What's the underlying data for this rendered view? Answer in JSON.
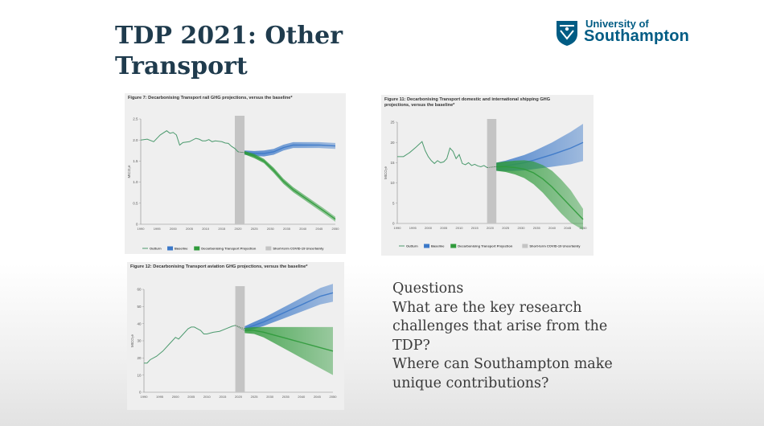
{
  "slide": {
    "title": "TDP 2021: Other Transport",
    "logo": {
      "top": "University of",
      "main": "Southampton"
    },
    "questions": {
      "heading": "Questions",
      "lines": [
        "What are the key research challenges that arise from the TDP?",
        "Where can Southampton make unique contributions?"
      ]
    }
  },
  "colors": {
    "outturn": "#4c9a6e",
    "baseline": "#3b78c8",
    "decarbonising": "#2f9a3b",
    "uncertainty": "#c4c4c4",
    "title": "#1f3b4d",
    "logo": "#005c84"
  },
  "chart_data": [
    {
      "id": "rail",
      "type": "line",
      "title": "Figure 7: Decarbonising Transport rail GHG projections, versus the baseline*",
      "ylabel": "MtCO₂e",
      "ylim": [
        0,
        2.5
      ],
      "yticks": [
        0,
        0.5,
        1.0,
        1.5,
        2.0,
        2.5
      ],
      "ytick_labels": [
        "0",
        "0.5",
        "1.0",
        "1.5",
        "2.0",
        "2.5"
      ],
      "xlim": [
        1990,
        2050
      ],
      "xticks": [
        1990,
        1995,
        2000,
        2005,
        2010,
        2015,
        2020,
        2025,
        2030,
        2035,
        2040,
        2045,
        2050
      ],
      "uncertainty_band": [
        2019,
        2022
      ],
      "legend": [
        "Outturn",
        "Baseline",
        "Decarbonising Transport Projection",
        "Short-term COVID-19 Uncertainty"
      ],
      "legend_position": "bottom",
      "series": [
        {
          "name": "Outturn",
          "role": "outturn",
          "x": [
            1990,
            1992,
            1994,
            1996,
            1998,
            1999,
            2000,
            2001,
            2002,
            2003,
            2005,
            2007,
            2008,
            2009,
            2010,
            2011,
            2012,
            2013,
            2014,
            2015,
            2016,
            2017,
            2018,
            2019,
            2020
          ],
          "y": [
            2.0,
            2.02,
            1.96,
            2.12,
            2.22,
            2.16,
            2.18,
            2.12,
            1.88,
            1.94,
            1.96,
            2.04,
            2.02,
            1.98,
            1.98,
            2.01,
            1.96,
            1.98,
            1.97,
            1.96,
            1.93,
            1.92,
            1.85,
            1.8,
            1.72
          ]
        },
        {
          "name": "Baseline",
          "role": "baseline",
          "x": [
            2022,
            2025,
            2028,
            2031,
            2034,
            2037,
            2040,
            2045,
            2050
          ],
          "y": [
            1.7,
            1.68,
            1.68,
            1.72,
            1.82,
            1.88,
            1.88,
            1.88,
            1.86
          ],
          "band": [
            0.05,
            0.06,
            0.07,
            0.07,
            0.07,
            0.07,
            0.07,
            0.07,
            0.07
          ]
        },
        {
          "name": "Decarbonising Transport Projection",
          "role": "decarbonising",
          "x": [
            2022,
            2025,
            2028,
            2031,
            2034,
            2037,
            2040,
            2043,
            2046,
            2050
          ],
          "y": [
            1.7,
            1.62,
            1.5,
            1.28,
            1.02,
            0.82,
            0.66,
            0.5,
            0.34,
            0.12
          ],
          "band": [
            0.04,
            0.05,
            0.05,
            0.06,
            0.06,
            0.06,
            0.06,
            0.06,
            0.06,
            0.06
          ]
        }
      ]
    },
    {
      "id": "shipping",
      "type": "line",
      "title": "Figure 11: Decarbonising Transport domestic and international shipping GHG projections, versus the baseline*",
      "ylabel": "MtCO₂e",
      "ylim": [
        0,
        25
      ],
      "yticks": [
        0,
        5,
        10,
        15,
        20,
        25
      ],
      "ytick_labels": [
        "0",
        "5",
        "10",
        "15",
        "20",
        "25"
      ],
      "xlim": [
        1990,
        2050
      ],
      "xticks": [
        1990,
        1995,
        2000,
        2005,
        2010,
        2015,
        2020,
        2025,
        2030,
        2035,
        2040,
        2045,
        2050
      ],
      "uncertainty_band": [
        2019,
        2022
      ],
      "legend": [
        "Outturn",
        "Baseline",
        "Decarbonising Transport Projection",
        "Short-term COVID-19 Uncertainty"
      ],
      "legend_position": "bottom",
      "series": [
        {
          "name": "Outturn",
          "role": "outturn",
          "x": [
            1990,
            1992,
            1994,
            1996,
            1998,
            1999,
            2000,
            2001,
            2002,
            2003,
            2004,
            2005,
            2006,
            2007,
            2008,
            2009,
            2010,
            2011,
            2012,
            2013,
            2014,
            2015,
            2016,
            2017,
            2018,
            2019
          ],
          "y": [
            16.5,
            16.5,
            17.5,
            18.8,
            20.2,
            18.0,
            16.5,
            15.5,
            14.8,
            15.5,
            15.0,
            15.2,
            16.0,
            18.6,
            17.8,
            16.0,
            17.0,
            14.8,
            14.5,
            15.0,
            14.3,
            14.6,
            14.2,
            14.0,
            14.3,
            13.8
          ]
        },
        {
          "name": "Baseline",
          "role": "baseline",
          "x": [
            2022,
            2025,
            2028,
            2031,
            2034,
            2037,
            2040,
            2043,
            2046,
            2050
          ],
          "y": [
            14.0,
            14.2,
            14.6,
            15.0,
            15.6,
            16.3,
            17.0,
            17.8,
            18.6,
            20.0
          ],
          "band": [
            1.0,
            1.3,
            1.6,
            1.9,
            2.2,
            2.6,
            3.0,
            3.5,
            4.0,
            4.6
          ]
        },
        {
          "name": "Decarbonising Transport Projection",
          "role": "decarbonising",
          "x": [
            2022,
            2025,
            2028,
            2031,
            2034,
            2037,
            2040,
            2043,
            2046,
            2050
          ],
          "y": [
            14.0,
            14.0,
            13.8,
            13.4,
            12.5,
            11.0,
            9.0,
            6.6,
            4.2,
            1.0
          ],
          "band": [
            1.0,
            1.3,
            1.7,
            2.2,
            2.8,
            3.4,
            4.0,
            4.2,
            4.0,
            2.6
          ]
        }
      ]
    },
    {
      "id": "aviation",
      "type": "line",
      "title": "Figure 12: Decarbonising Transport aviation GHG projections, versus the baseline*",
      "ylabel": "MtCO₂e",
      "ylim": [
        0,
        60
      ],
      "yticks": [
        0,
        10,
        20,
        30,
        40,
        50,
        60
      ],
      "ytick_labels": [
        "0",
        "10",
        "20",
        "30",
        "40",
        "50",
        "60"
      ],
      "xlim": [
        1990,
        2050
      ],
      "xticks": [
        1990,
        1995,
        2000,
        2005,
        2010,
        2015,
        2020,
        2025,
        2030,
        2035,
        2040,
        2045,
        2050
      ],
      "uncertainty_band": [
        2019,
        2022
      ],
      "series": [
        {
          "name": "Outturn",
          "role": "outturn",
          "x": [
            1990,
            1991,
            1992,
            1994,
            1996,
            1998,
            2000,
            2001,
            2002,
            2004,
            2005,
            2006,
            2007,
            2008,
            2009,
            2010,
            2012,
            2014,
            2016,
            2018,
            2019
          ],
          "y": [
            17.0,
            17.0,
            19.0,
            21.0,
            24.0,
            28.0,
            32.0,
            31.0,
            33.0,
            37.0,
            38.0,
            38.0,
            37.0,
            36.0,
            34.0,
            34.0,
            35.0,
            35.5,
            37.0,
            38.5,
            39.0
          ]
        },
        {
          "name": "Baseline",
          "role": "baseline",
          "x": [
            2022,
            2025,
            2028,
            2031,
            2034,
            2037,
            2040,
            2043,
            2046,
            2050
          ],
          "y": [
            37.0,
            39.0,
            41.0,
            43.5,
            46.0,
            48.5,
            51.0,
            53.5,
            56.0,
            58.0
          ],
          "band": [
            1.5,
            2.0,
            2.4,
            2.8,
            3.2,
            3.6,
            4.0,
            4.4,
            4.8,
            5.2
          ]
        },
        {
          "name": "Decarbonising Transport Projection",
          "role": "decarbonising",
          "x": [
            2022,
            2025,
            2028,
            2031,
            2034,
            2037,
            2040,
            2043,
            2046,
            2050
          ],
          "y": [
            36.0,
            36.0,
            35.0,
            33.5,
            32.0,
            30.5,
            29.0,
            27.5,
            26.0,
            24.0
          ],
          "band": [
            1.5,
            2.0,
            3.0,
            4.5,
            6.0,
            7.5,
            9.0,
            10.5,
            12.0,
            14.0
          ]
        }
      ]
    }
  ]
}
